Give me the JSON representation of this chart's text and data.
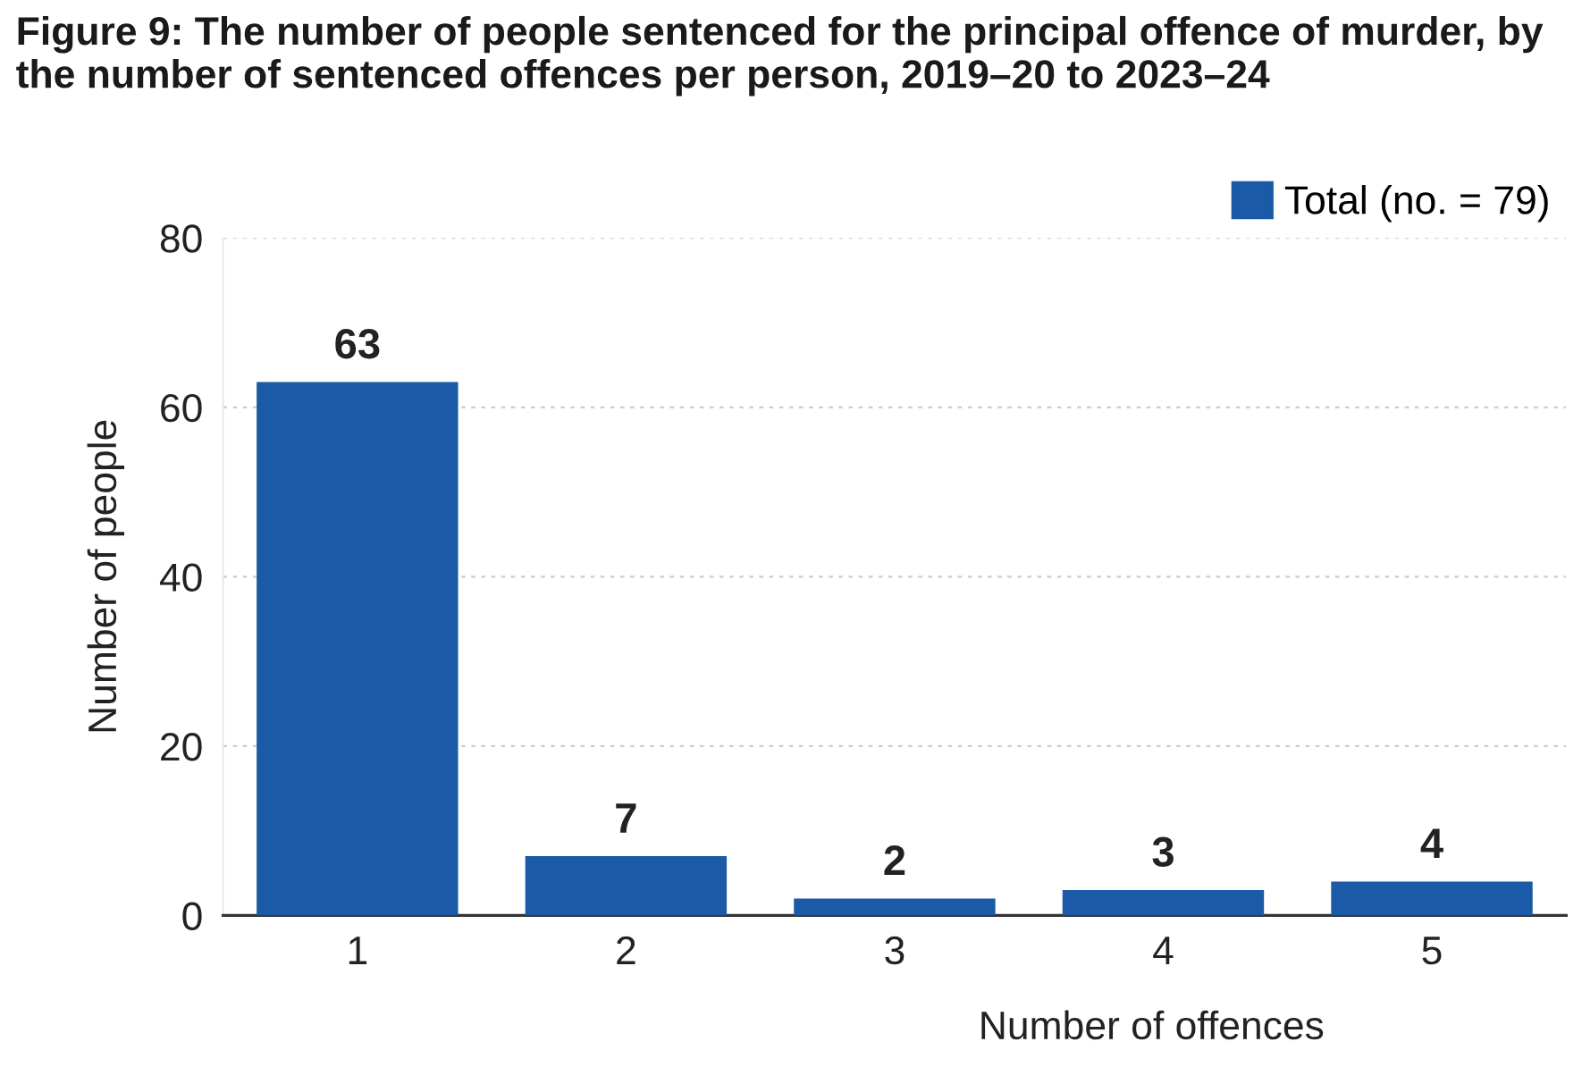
{
  "chart_data": {
    "type": "bar",
    "title": "Figure 9: The number of people sentenced for the principal offence of murder, by the number of sentenced offences per person, 2019–20 to 2023–24",
    "xlabel": "Number of offences",
    "ylabel": "Number of people",
    "categories": [
      "1",
      "2",
      "3",
      "4",
      "5"
    ],
    "series": [
      {
        "name": "Total (no. = 79)",
        "color": "#1a5aa6",
        "values": [
          63,
          7,
          2,
          3,
          4
        ]
      }
    ],
    "ylim": [
      0,
      80
    ],
    "yticks": [
      0,
      20,
      40,
      60,
      80
    ],
    "grid": "y",
    "legend": "top right",
    "data_labels": true
  }
}
